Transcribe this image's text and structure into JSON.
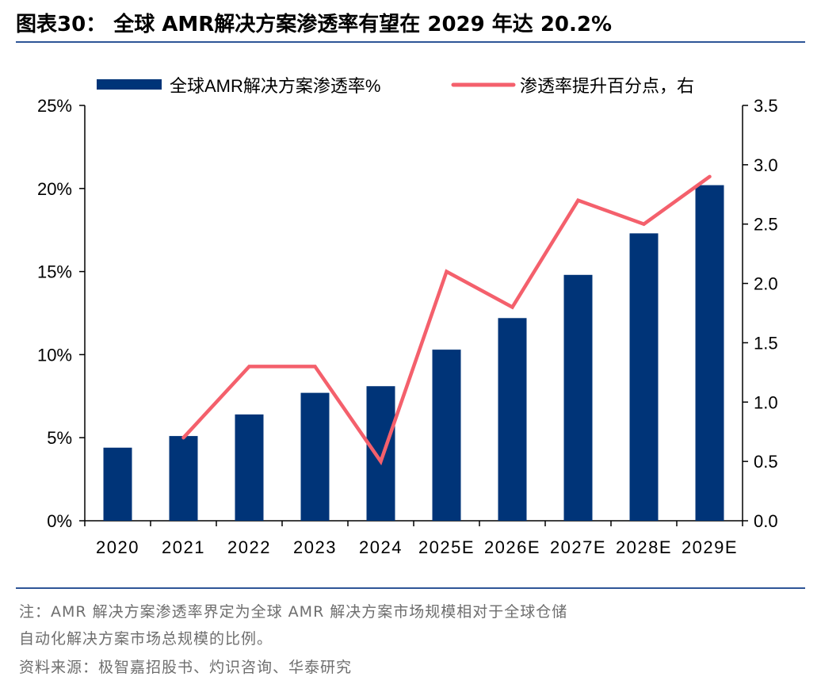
{
  "header": {
    "title": "图表30：  全球 AMR解决方案渗透率有望在 2029 年达 20.2%"
  },
  "notes": {
    "line1": "注：AMR 解决方案渗透率界定为全球 AMR 解决方案市场规模相对于全球仓储",
    "line2": "自动化解决方案市场总规模的比例。",
    "line3": "资料来源：极智嘉招股书、灼识咨询、华泰研究"
  },
  "colors": {
    "bar": "#003478",
    "line": "#f4606c",
    "rule": "#2e5597"
  },
  "chart_data": {
    "type": "bar",
    "categories": [
      "2020",
      "2021",
      "2022",
      "2023",
      "2024",
      "2025E",
      "2026E",
      "2027E",
      "2028E",
      "2029E"
    ],
    "series": [
      {
        "name": "全球AMR解决方案渗透率%",
        "type": "bar",
        "axis": "left",
        "values": [
          4.4,
          5.1,
          6.4,
          7.7,
          8.1,
          10.3,
          12.2,
          14.8,
          17.3,
          20.2
        ]
      },
      {
        "name": "渗透率提升百分点，右",
        "type": "line",
        "axis": "right",
        "values": [
          null,
          0.7,
          1.3,
          1.3,
          0.5,
          2.1,
          1.8,
          2.7,
          2.5,
          2.9
        ]
      }
    ],
    "left_axis": {
      "ticks": [
        "0%",
        "5%",
        "10%",
        "15%",
        "20%",
        "25%"
      ],
      "range": [
        0,
        25
      ]
    },
    "right_axis": {
      "ticks": [
        "0.0",
        "0.5",
        "1.0",
        "1.5",
        "2.0",
        "2.5",
        "3.0",
        "3.5"
      ],
      "range": [
        0,
        3.5
      ]
    },
    "legend": "top",
    "grid": false
  }
}
